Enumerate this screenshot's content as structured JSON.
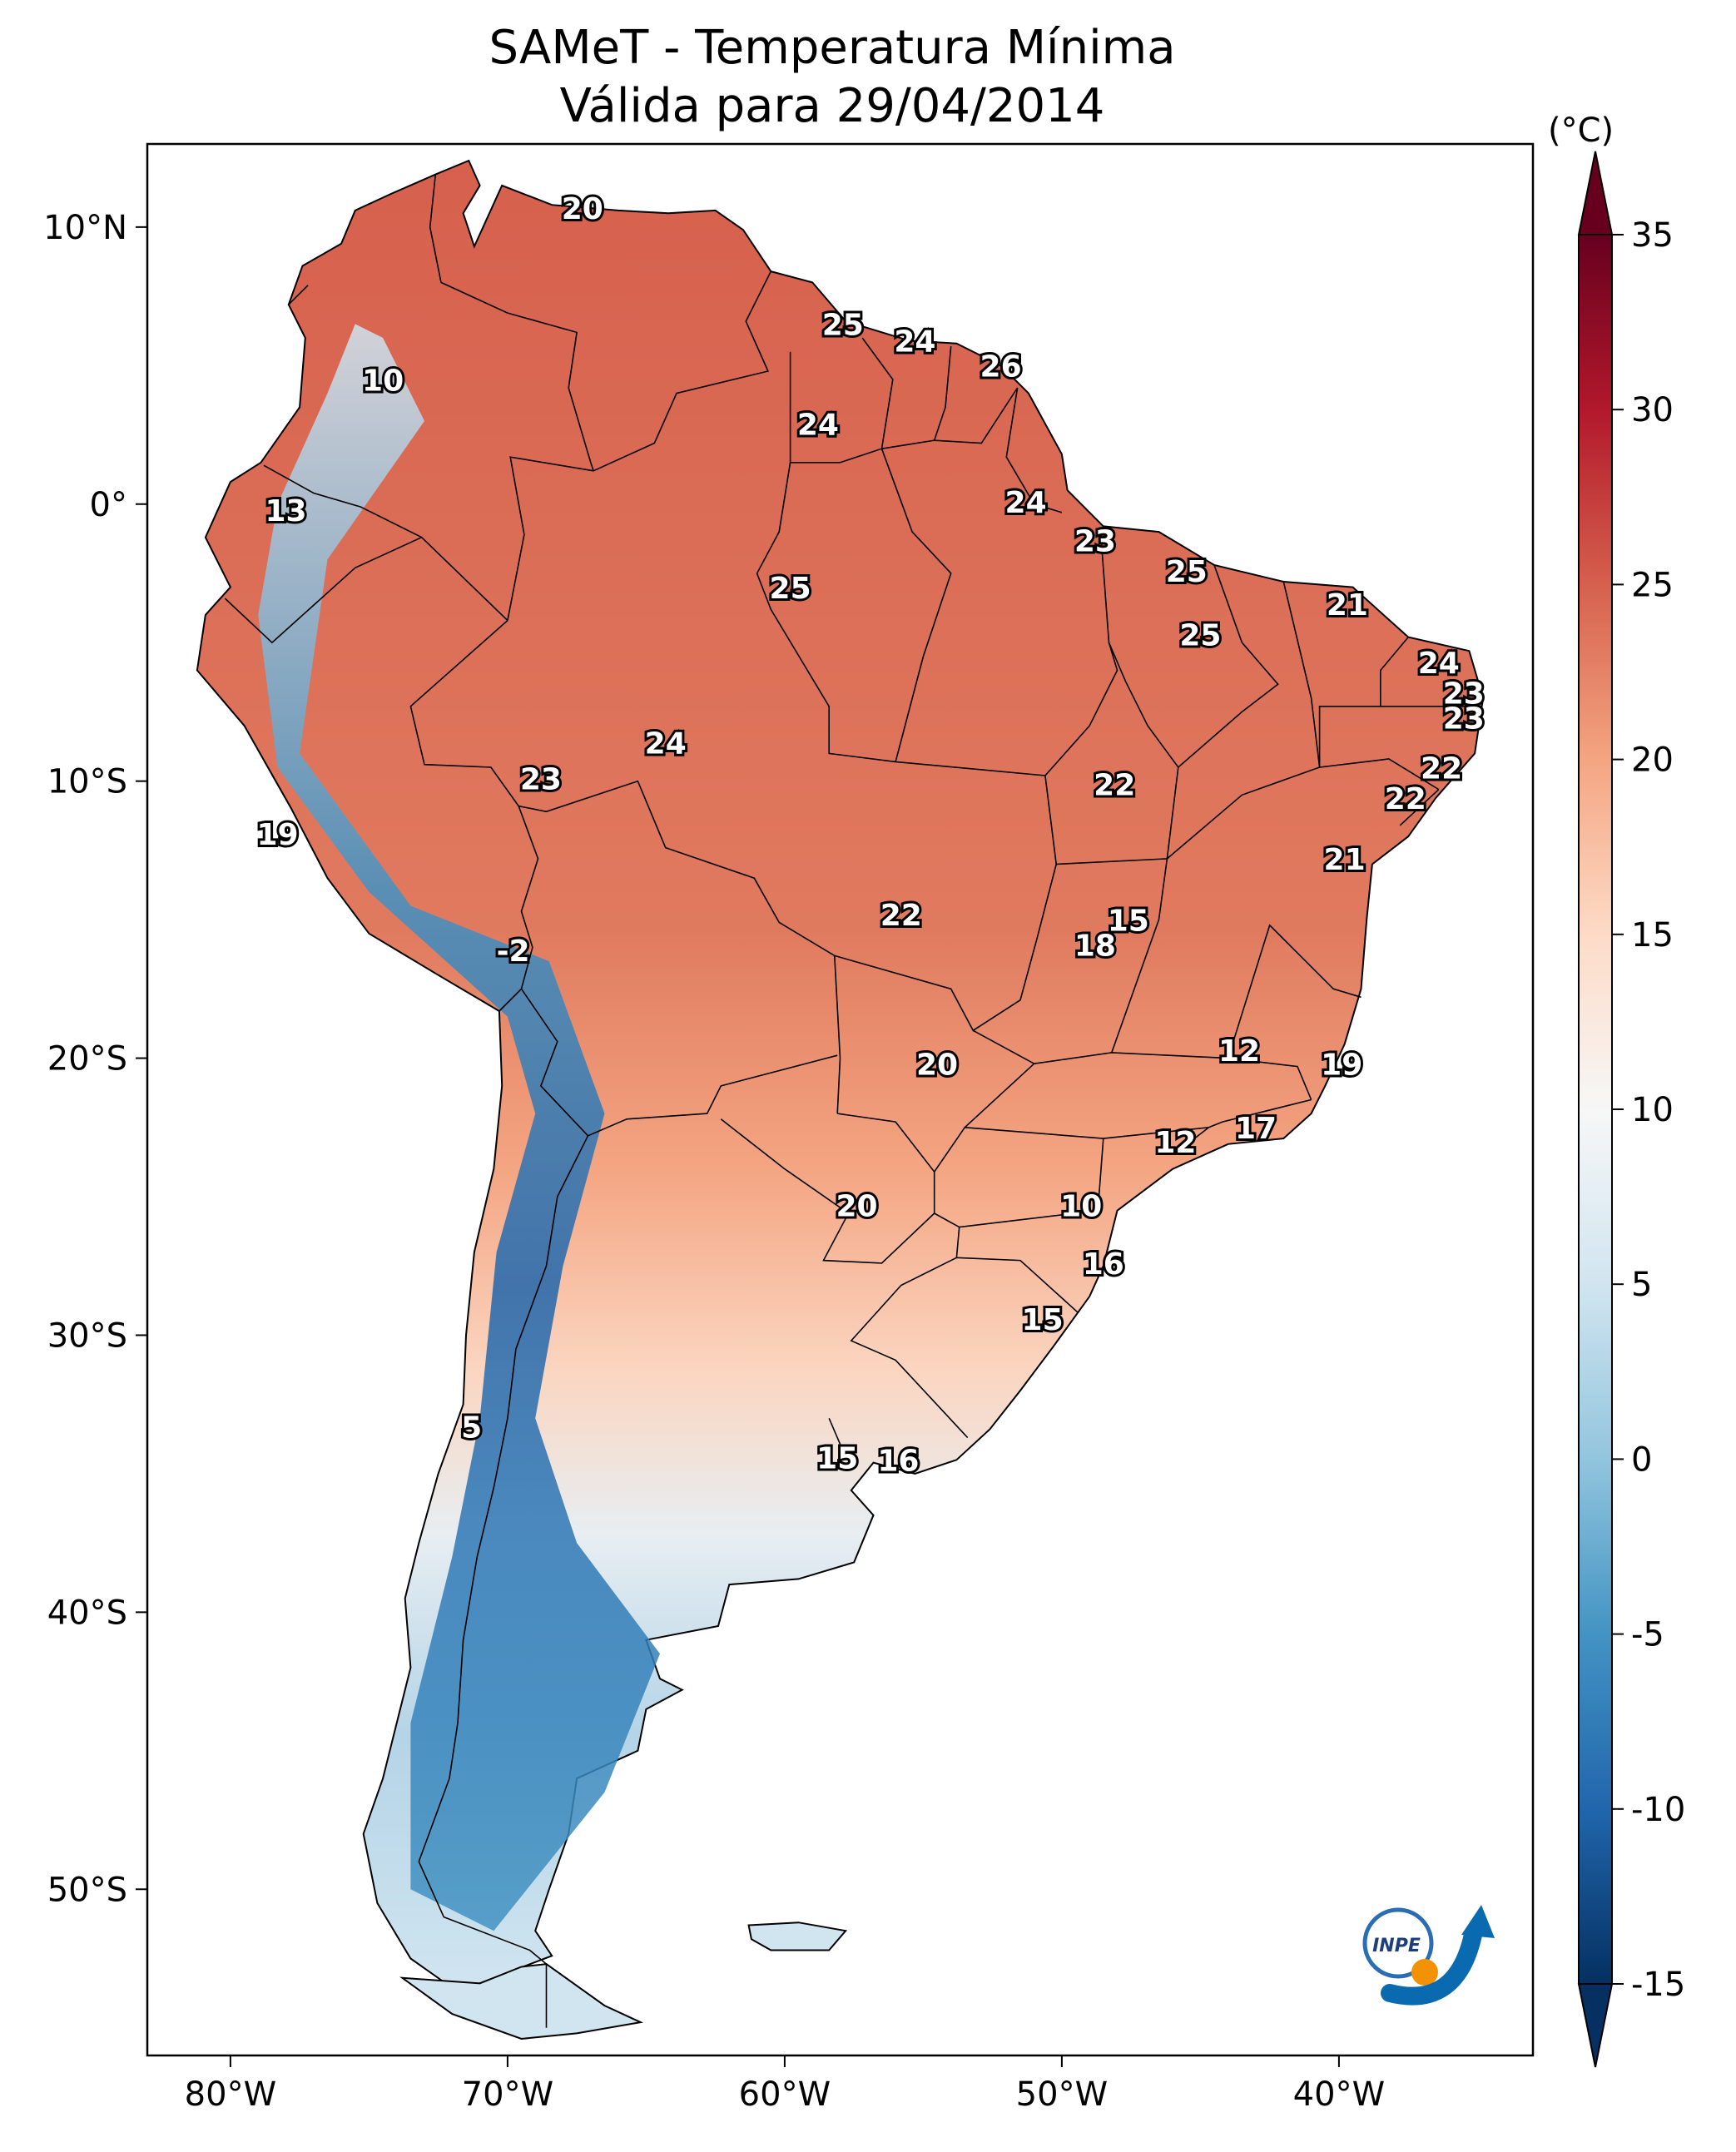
{
  "title": "SAMeT - Temperatura Mínima",
  "subtitle": "Válida para 29/04/2014",
  "colorbar": {
    "unit": "(°C)",
    "min": -15,
    "max": 35,
    "ticks": [
      "35",
      "30",
      "25",
      "20",
      "15",
      "10",
      "5",
      "0",
      "-5",
      "-10",
      "-15"
    ],
    "colors": [
      "#053061",
      "#2166ac",
      "#4393c3",
      "#92c5de",
      "#d1e5f0",
      "#f7f7f7",
      "#fddbc7",
      "#f4a582",
      "#d6604d",
      "#b2182b",
      "#67001f"
    ]
  },
  "axes": {
    "lon_ticks": [
      "80°W",
      "70°W",
      "60°W",
      "50°W",
      "40°W"
    ],
    "lat_ticks": [
      "10°N",
      "0°",
      "10°S",
      "20°S",
      "30°S",
      "40°S",
      "50°S"
    ]
  },
  "map_data": {
    "type": "filled-contour-map",
    "extent": {
      "lon": [
        -83,
        -33
      ],
      "lat": [
        -56,
        13
      ]
    },
    "labels": [
      {
        "lon": -67.3,
        "lat": 10.6,
        "value": "20"
      },
      {
        "lon": -74.5,
        "lat": 4.4,
        "value": "10"
      },
      {
        "lon": -78.0,
        "lat": -0.3,
        "value": "13"
      },
      {
        "lon": -57.9,
        "lat": 6.4,
        "value": "25"
      },
      {
        "lon": -55.3,
        "lat": 5.8,
        "value": "24"
      },
      {
        "lon": -52.2,
        "lat": 4.9,
        "value": "26"
      },
      {
        "lon": -58.8,
        "lat": 2.8,
        "value": "24"
      },
      {
        "lon": -51.3,
        "lat": 0.0,
        "value": "24"
      },
      {
        "lon": -48.8,
        "lat": -1.4,
        "value": "23"
      },
      {
        "lon": -59.8,
        "lat": -3.1,
        "value": "25"
      },
      {
        "lon": -45.5,
        "lat": -2.5,
        "value": "25"
      },
      {
        "lon": -39.7,
        "lat": -3.7,
        "value": "21"
      },
      {
        "lon": -45.0,
        "lat": -4.8,
        "value": "25"
      },
      {
        "lon": -36.4,
        "lat": -5.8,
        "value": "24"
      },
      {
        "lon": -35.5,
        "lat": -6.9,
        "value": "23"
      },
      {
        "lon": -35.5,
        "lat": -7.8,
        "value": "23"
      },
      {
        "lon": -64.3,
        "lat": -8.7,
        "value": "24"
      },
      {
        "lon": -36.3,
        "lat": -9.6,
        "value": "22"
      },
      {
        "lon": -68.8,
        "lat": -10.0,
        "value": "23"
      },
      {
        "lon": -48.1,
        "lat": -10.2,
        "value": "22"
      },
      {
        "lon": -37.6,
        "lat": -10.7,
        "value": "22"
      },
      {
        "lon": -78.3,
        "lat": -12.0,
        "value": "19"
      },
      {
        "lon": -39.8,
        "lat": -12.9,
        "value": "21"
      },
      {
        "lon": -47.6,
        "lat": -15.1,
        "value": "15"
      },
      {
        "lon": -55.8,
        "lat": -14.9,
        "value": "22"
      },
      {
        "lon": -48.8,
        "lat": -16.0,
        "value": "18"
      },
      {
        "lon": -69.8,
        "lat": -16.2,
        "value": "-2"
      },
      {
        "lon": -43.6,
        "lat": -19.8,
        "value": "12"
      },
      {
        "lon": -54.5,
        "lat": -20.3,
        "value": "20"
      },
      {
        "lon": -39.9,
        "lat": -20.3,
        "value": "19"
      },
      {
        "lon": -43.0,
        "lat": -22.6,
        "value": "17"
      },
      {
        "lon": -45.9,
        "lat": -23.1,
        "value": "12"
      },
      {
        "lon": -57.4,
        "lat": -25.4,
        "value": "20"
      },
      {
        "lon": -49.3,
        "lat": -25.4,
        "value": "10"
      },
      {
        "lon": -48.5,
        "lat": -27.5,
        "value": "16"
      },
      {
        "lon": -50.7,
        "lat": -29.5,
        "value": "15"
      },
      {
        "lon": -71.3,
        "lat": -33.4,
        "value": "5"
      },
      {
        "lon": -58.1,
        "lat": -34.5,
        "value": "15"
      },
      {
        "lon": -55.9,
        "lat": -34.6,
        "value": "16"
      }
    ]
  }
}
